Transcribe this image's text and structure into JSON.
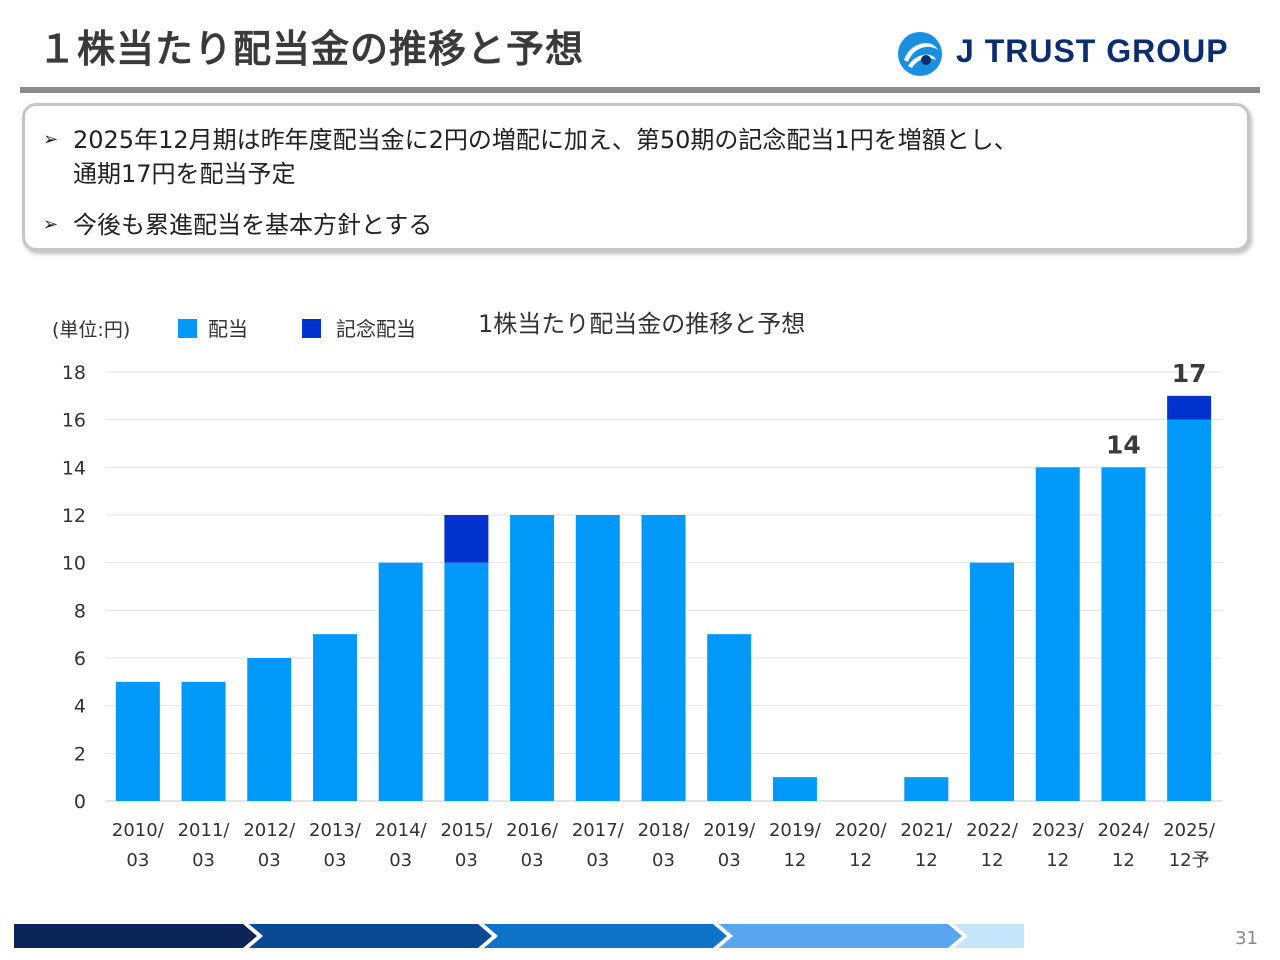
{
  "slide": {
    "title": "１株当たり配当金の推移と予想",
    "logo_text": "J TRUST GROUP",
    "page_number": "31"
  },
  "summary": {
    "bullet_marker": "➢",
    "bullets": [
      {
        "line1": "2025年12月期は昨年度配当金に2円の増配に加え、第50期の記念配当1円を増額とし、",
        "line2": "通期17円を配当予定"
      },
      {
        "line1": "今後も累進配当を基本方針とする",
        "line2": ""
      }
    ]
  },
  "colors": {
    "regular": "#0099f7",
    "commemorative": "#0033cc",
    "grid": "#e3e3e3",
    "title_rule": "#8c8c8c",
    "brand": "#0b2d6e",
    "band": [
      "#0b2558",
      "#0a4a92",
      "#0d73c8",
      "#5aa6ee",
      "#c4e4fb"
    ]
  },
  "chart_data": {
    "type": "bar",
    "stacked": true,
    "title": "1株当たり配当金の推移と予想",
    "unit_label": "(単位:円)",
    "categories": [
      [
        "2010/",
        "03"
      ],
      [
        "2011/",
        "03"
      ],
      [
        "2012/",
        "03"
      ],
      [
        "2013/",
        "03"
      ],
      [
        "2014/",
        "03"
      ],
      [
        "2015/",
        "03"
      ],
      [
        "2016/",
        "03"
      ],
      [
        "2017/",
        "03"
      ],
      [
        "2018/",
        "03"
      ],
      [
        "2019/",
        "03"
      ],
      [
        "2019/",
        "12"
      ],
      [
        "2020/",
        "12"
      ],
      [
        "2021/",
        "12"
      ],
      [
        "2022/",
        "12"
      ],
      [
        "2023/",
        "12"
      ],
      [
        "2024/",
        "12"
      ],
      [
        "2025/",
        "12予"
      ]
    ],
    "series": [
      {
        "name": "配当",
        "color": "#0099f7",
        "values": [
          5,
          5,
          6,
          7,
          10,
          10,
          12,
          12,
          12,
          7,
          1,
          0,
          1,
          10,
          14,
          14,
          16
        ]
      },
      {
        "name": "記念配当",
        "color": "#0033cc",
        "values": [
          0,
          0,
          0,
          0,
          0,
          2,
          0,
          0,
          0,
          0,
          0,
          0,
          0,
          0,
          0,
          0,
          1
        ]
      }
    ],
    "data_labels": [
      {
        "index": 15,
        "text": "14"
      },
      {
        "index": 16,
        "text": "17"
      }
    ],
    "ylim": [
      0,
      18
    ],
    "yticks": [
      0,
      2,
      4,
      6,
      8,
      10,
      12,
      14,
      16,
      18
    ],
    "grid": true,
    "legend_position": "top-left"
  }
}
